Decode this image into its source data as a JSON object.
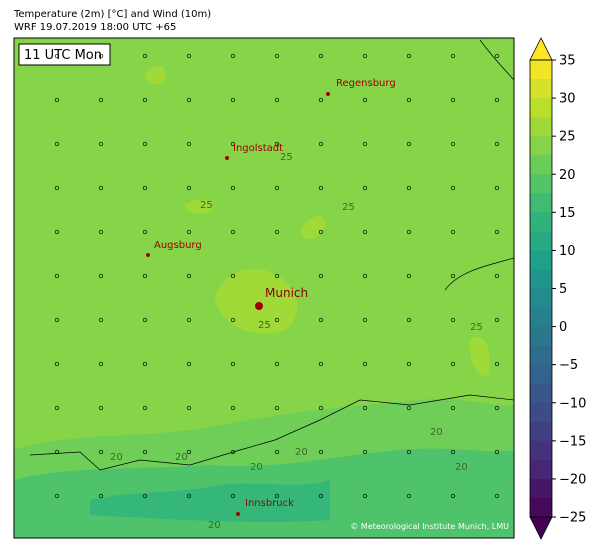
{
  "header": {
    "title": "Temperature (2m) [°C] and Wind (10m)",
    "subtitle": "WRF 19.07.2019 18:00 UTC +65"
  },
  "map": {
    "time_label": "11 UTC Mon",
    "cities": [
      "Regensburg",
      "Ingolstadt",
      "Augsburg",
      "Munich",
      "Innsbruck"
    ],
    "contour_labels": [
      "25",
      "25",
      "25",
      "25",
      "25",
      "20",
      "20",
      "20",
      "20",
      "20",
      "20",
      "20"
    ],
    "credit": "© Meteorological Institute Munich, LMU"
  },
  "colorbar": {
    "lim": [
      -25,
      35
    ],
    "ticks": [
      35,
      30,
      25,
      20,
      15,
      10,
      5,
      0,
      {
        "value": -5,
        "label": "−5"
      },
      {
        "value": -10,
        "label": "−10"
      },
      {
        "value": -15,
        "label": "−15"
      },
      {
        "value": -20,
        "label": "−20"
      },
      {
        "value": -25,
        "label": "−25"
      }
    ]
  }
}
